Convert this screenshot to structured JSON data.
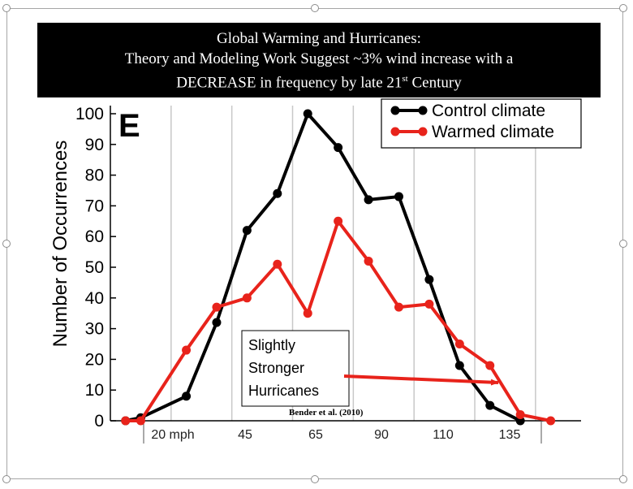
{
  "title": {
    "line1": "Global Warming and Hurricanes:",
    "line2": "Theory and Modeling Work Suggest ~3% wind increase with a",
    "line3_before": "DECREASE in frequency by late 21",
    "line3_sup": "st",
    "line3_after": " Century"
  },
  "panel_label": "E",
  "annotation": {
    "lines": [
      "Slightly",
      "Stronger",
      "Hurricanes"
    ],
    "arrow_color": "#e8231b"
  },
  "credit": "Bender et al. (2010)",
  "colors": {
    "control": "#000000",
    "warmed": "#e8231b",
    "grid": "#c8c8c8"
  },
  "chart_data": {
    "type": "line",
    "ylabel": "Number of Occurrences",
    "ylim": [
      0,
      100
    ],
    "yticks": [
      0,
      10,
      20,
      30,
      40,
      50,
      60,
      70,
      80,
      90,
      100
    ],
    "xticks": [
      "20 mph",
      "45",
      "65",
      "90",
      "110",
      "135"
    ],
    "grid": "vertical",
    "legend_position": "top-right",
    "series": [
      {
        "name": "Control climate",
        "color": "#000000",
        "points": [
          {
            "x": 5,
            "y": 0
          },
          {
            "x": 10,
            "y": 1
          },
          {
            "x": 25,
            "y": 8
          },
          {
            "x": 35,
            "y": 32
          },
          {
            "x": 45,
            "y": 62
          },
          {
            "x": 55,
            "y": 74
          },
          {
            "x": 65,
            "y": 100
          },
          {
            "x": 75,
            "y": 89
          },
          {
            "x": 85,
            "y": 72
          },
          {
            "x": 95,
            "y": 73
          },
          {
            "x": 105,
            "y": 46
          },
          {
            "x": 115,
            "y": 18
          },
          {
            "x": 125,
            "y": 5
          },
          {
            "x": 135,
            "y": 0
          }
        ]
      },
      {
        "name": "Warmed climate",
        "color": "#e8231b",
        "points": [
          {
            "x": 5,
            "y": 0
          },
          {
            "x": 10,
            "y": 0
          },
          {
            "x": 25,
            "y": 23
          },
          {
            "x": 35,
            "y": 37
          },
          {
            "x": 45,
            "y": 40
          },
          {
            "x": 55,
            "y": 51
          },
          {
            "x": 65,
            "y": 35
          },
          {
            "x": 75,
            "y": 65
          },
          {
            "x": 85,
            "y": 52
          },
          {
            "x": 95,
            "y": 37
          },
          {
            "x": 105,
            "y": 38
          },
          {
            "x": 115,
            "y": 25
          },
          {
            "x": 125,
            "y": 18
          },
          {
            "x": 135,
            "y": 2
          },
          {
            "x": 145,
            "y": 0
          }
        ]
      }
    ]
  }
}
